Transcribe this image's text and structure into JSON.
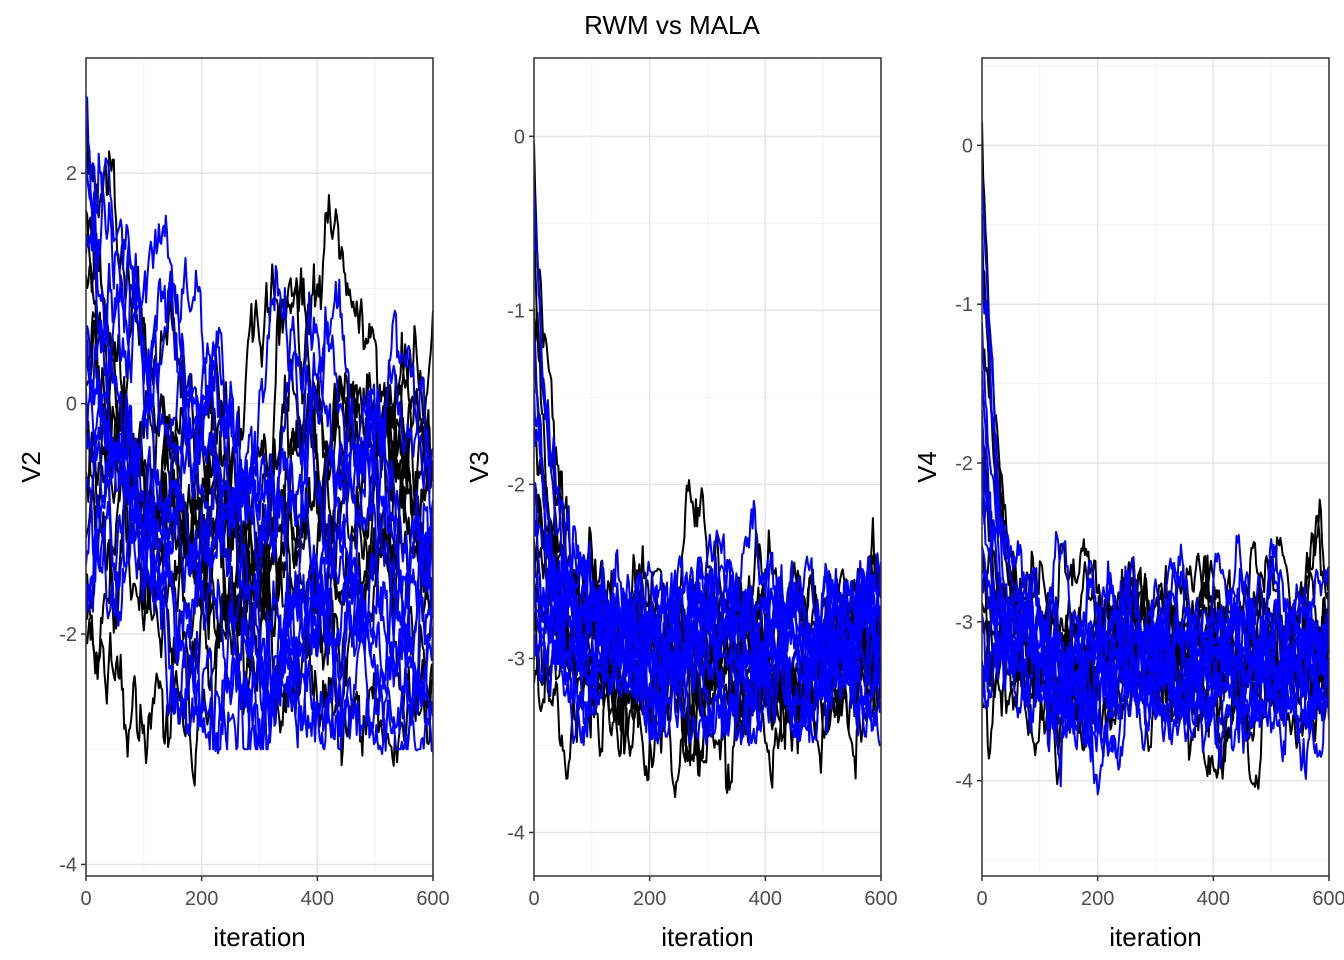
{
  "title": "RWM vs MALA",
  "colors": {
    "rwm": "#000000",
    "mala": "#0000ff",
    "grid_major": "#e5e5e5",
    "grid_minor": "#f2f2f2",
    "panel_border": "#333333",
    "tick_text": "#4d4d4d"
  },
  "chart_data": [
    {
      "type": "line",
      "xlabel": "iteration",
      "ylabel": "V2",
      "xlim": [
        0,
        600
      ],
      "ylim": [
        -4.1,
        3.0
      ],
      "xticks": [
        0,
        200,
        400,
        600
      ],
      "yticks": [
        -4,
        -2,
        0,
        2
      ],
      "grid": true,
      "n_chains_per_series": 12,
      "series": [
        {
          "color": "#000000",
          "start_values": [
            2.4,
            1.9,
            1.6,
            1.2,
            0.8,
            0.3,
            0.0,
            -0.6,
            -1.0,
            -1.4,
            -1.8,
            -2.2
          ],
          "target_mean": -1.3,
          "spread": 1.1,
          "min_observed": -3.8,
          "max_observed": 2.85
        },
        {
          "color": "#0000ff",
          "start_values": [
            2.7,
            2.1,
            1.8,
            1.3,
            0.9,
            0.6,
            0.0,
            -0.4,
            -0.9,
            -1.3,
            -1.6,
            -2.0
          ],
          "target_mean": -1.4,
          "spread": 0.9,
          "min_observed": -3.05,
          "max_observed": 2.7
        }
      ]
    },
    {
      "type": "line",
      "xlabel": "iteration",
      "ylabel": "V3",
      "xlim": [
        0,
        600
      ],
      "ylim": [
        -4.25,
        0.45
      ],
      "xticks": [
        0,
        200,
        400,
        600
      ],
      "yticks": [
        -4,
        -3,
        -2,
        -1,
        0
      ],
      "grid": true,
      "n_chains_per_series": 12,
      "series": [
        {
          "color": "#000000",
          "start_values": [
            0.2,
            -0.3,
            -0.8,
            -1.2,
            -1.6,
            -2.0,
            -2.3,
            -2.5,
            -2.6,
            -2.8,
            -2.9,
            -3.0
          ],
          "target_mean": -3.0,
          "spread": 0.2,
          "min_observed": -4.05,
          "max_observed": 0.2
        },
        {
          "color": "#0000ff",
          "start_values": [
            -0.1,
            -0.5,
            -0.9,
            -1.3,
            -1.7,
            -2.0,
            -2.2,
            -2.4,
            -2.6,
            -2.7,
            -2.9,
            -3.0
          ],
          "target_mean": -2.95,
          "spread": 0.2,
          "min_observed": -3.5,
          "max_observed": -0.1
        }
      ]
    },
    {
      "type": "line",
      "xlabel": "iteration",
      "ylabel": "V4",
      "xlim": [
        0,
        600
      ],
      "ylim": [
        -4.6,
        0.55
      ],
      "xticks": [
        0,
        200,
        400,
        600
      ],
      "yticks": [
        -4,
        -3,
        -2,
        -1,
        0
      ],
      "grid": true,
      "n_chains_per_series": 12,
      "series": [
        {
          "color": "#000000",
          "start_values": [
            0.35,
            -0.2,
            -0.7,
            -1.2,
            -1.6,
            -2.0,
            -2.4,
            -2.7,
            -2.9,
            -3.1,
            -3.3,
            -3.5
          ],
          "target_mean": -3.2,
          "spread": 0.35,
          "min_observed": -4.5,
          "max_observed": 0.35
        },
        {
          "color": "#0000ff",
          "start_values": [
            0.05,
            -0.4,
            -0.9,
            -1.3,
            -1.6,
            -1.9,
            -2.2,
            -2.5,
            -2.8,
            -3.0,
            -3.2,
            -3.4
          ],
          "target_mean": -3.2,
          "spread": 0.3,
          "min_observed": -4.55,
          "max_observed": 0.05
        }
      ]
    }
  ]
}
